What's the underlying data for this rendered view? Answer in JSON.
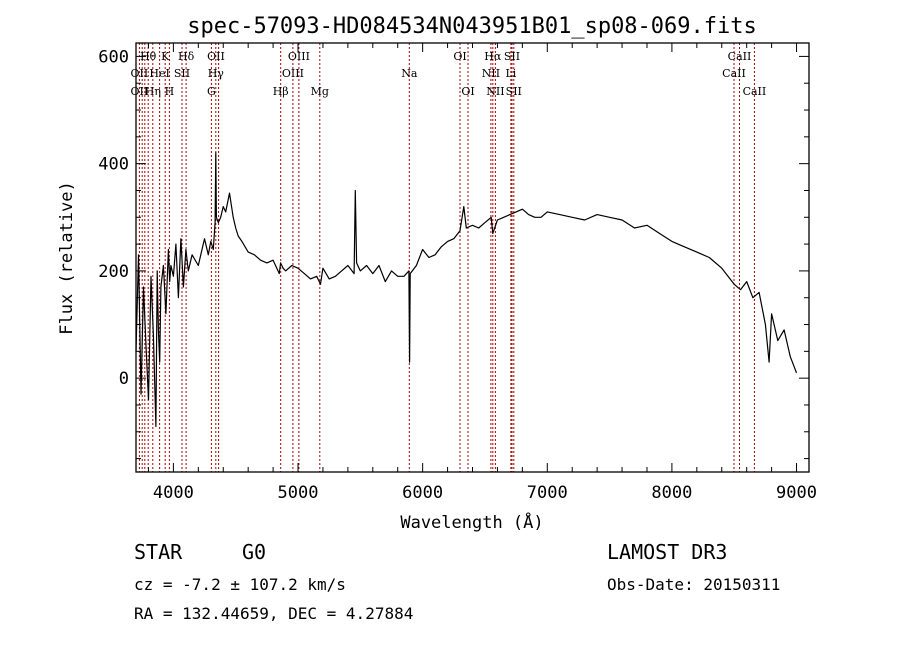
{
  "chart_data": {
    "type": "line",
    "title": "spec-57093-HD084534N043951B01_sp08-069.fits",
    "xlabel": "Wavelength (Å)",
    "ylabel": "Flux (relative)",
    "xlim": [
      3700,
      9100
    ],
    "ylim": [
      -175,
      625
    ],
    "xticks": [
      4000,
      5000,
      6000,
      7000,
      8000,
      9000
    ],
    "yticks": [
      0,
      200,
      400,
      600
    ],
    "colors": {
      "line": "#000000",
      "marker": "#aa0000",
      "axis": "#000000"
    },
    "series": [
      {
        "name": "spectrum",
        "x": [
          3700,
          3720,
          3740,
          3760,
          3780,
          3800,
          3820,
          3840,
          3860,
          3870,
          3880,
          3890,
          3900,
          3920,
          3940,
          3960,
          3970,
          3980,
          4000,
          4020,
          4040,
          4060,
          4080,
          4100,
          4120,
          4150,
          4200,
          4250,
          4280,
          4300,
          4320,
          4335,
          4340,
          4345,
          4360,
          4380,
          4400,
          4420,
          4450,
          4480,
          4500,
          4520,
          4550,
          4600,
          4650,
          4700,
          4750,
          4800,
          4850,
          4860,
          4880,
          4900,
          4950,
          5000,
          5050,
          5100,
          5150,
          5180,
          5200,
          5250,
          5300,
          5350,
          5400,
          5450,
          5460,
          5470,
          5500,
          5550,
          5600,
          5650,
          5700,
          5750,
          5800,
          5850,
          5890,
          5895,
          5900,
          5950,
          6000,
          6050,
          6100,
          6150,
          6200,
          6250,
          6300,
          6330,
          6350,
          6400,
          6450,
          6500,
          6550,
          6563,
          6600,
          6650,
          6700,
          6750,
          6800,
          6850,
          6900,
          6950,
          7000,
          7100,
          7200,
          7300,
          7400,
          7500,
          7600,
          7700,
          7800,
          7900,
          8000,
          8100,
          8200,
          8300,
          8400,
          8450,
          8500,
          8550,
          8600,
          8650,
          8700,
          8750,
          8780,
          8800,
          8850,
          8900,
          8950,
          9000
        ],
        "y": [
          50,
          230,
          -30,
          170,
          60,
          -40,
          190,
          80,
          -90,
          200,
          90,
          30,
          170,
          210,
          120,
          240,
          180,
          210,
          190,
          250,
          150,
          260,
          170,
          240,
          200,
          230,
          210,
          260,
          230,
          255,
          240,
          290,
          420,
          300,
          290,
          300,
          320,
          310,
          345,
          300,
          280,
          265,
          255,
          235,
          230,
          220,
          215,
          220,
          195,
          215,
          205,
          200,
          210,
          205,
          195,
          185,
          190,
          175,
          205,
          185,
          190,
          200,
          210,
          195,
          350,
          215,
          200,
          210,
          195,
          210,
          180,
          200,
          190,
          190,
          200,
          30,
          195,
          210,
          240,
          225,
          230,
          245,
          255,
          260,
          275,
          320,
          280,
          285,
          280,
          290,
          300,
          270,
          295,
          300,
          305,
          310,
          315,
          305,
          300,
          300,
          310,
          305,
          300,
          295,
          305,
          300,
          295,
          280,
          285,
          270,
          255,
          245,
          235,
          225,
          205,
          190,
          175,
          165,
          180,
          150,
          160,
          100,
          30,
          120,
          70,
          90,
          40,
          10
        ]
      }
    ],
    "line_labels": [
      {
        "text": "Hθ",
        "wl": 3798,
        "row": 1
      },
      {
        "text": "OII",
        "wl": 3727,
        "row": 2
      },
      {
        "text": "OII",
        "wl": 3727,
        "row": 3
      },
      {
        "text": "Hη",
        "wl": 3836,
        "row": 3
      },
      {
        "text": "HeI",
        "wl": 3889,
        "row": 2
      },
      {
        "text": "K",
        "wl": 3934,
        "row": 1
      },
      {
        "text": "SII",
        "wl": 4069,
        "row": 2
      },
      {
        "text": "H",
        "wl": 3968,
        "row": 3
      },
      {
        "text": "Hδ",
        "wl": 4102,
        "row": 1
      },
      {
        "text": "OII",
        "wl": 4342,
        "row": 1
      },
      {
        "text": "Hγ",
        "wl": 4340,
        "row": 2
      },
      {
        "text": "G",
        "wl": 4305,
        "row": 3
      },
      {
        "text": "OIII",
        "wl": 5007,
        "row": 1
      },
      {
        "text": "OIII",
        "wl": 4959,
        "row": 2
      },
      {
        "text": "Hβ",
        "wl": 4861,
        "row": 3
      },
      {
        "text": "Mg",
        "wl": 5175,
        "row": 3
      },
      {
        "text": "Na",
        "wl": 5893,
        "row": 2
      },
      {
        "text": "OI",
        "wl": 6300,
        "row": 1
      },
      {
        "text": "OI",
        "wl": 6364,
        "row": 3
      },
      {
        "text": "Hα",
        "wl": 6563,
        "row": 1
      },
      {
        "text": "SII",
        "wl": 6717,
        "row": 1
      },
      {
        "text": "NII",
        "wl": 6548,
        "row": 2
      },
      {
        "text": "Li",
        "wl": 6708,
        "row": 2
      },
      {
        "text": "NII",
        "wl": 6584,
        "row": 3
      },
      {
        "text": "SII",
        "wl": 6731,
        "row": 3
      },
      {
        "text": "CaII",
        "wl": 8542,
        "row": 1
      },
      {
        "text": "CaII",
        "wl": 8498,
        "row": 2
      },
      {
        "text": "CaII",
        "wl": 8662,
        "row": 3
      }
    ],
    "marker_lines": [
      3727,
      3750,
      3771,
      3798,
      3835,
      3889,
      3934,
      3968,
      4069,
      4102,
      4305,
      4340,
      4363,
      4861,
      4959,
      5007,
      5175,
      5893,
      6300,
      6364,
      6548,
      6563,
      6584,
      6708,
      6717,
      6731,
      8498,
      8542,
      8662
    ]
  },
  "info": {
    "object_class": "STAR",
    "subclass": "G0",
    "survey": "LAMOST DR3",
    "redshift": "cz = -7.2 ± 107.2 km/s",
    "obs_date": "Obs-Date: 20150311",
    "coordinates": "RA = 132.44659, DEC =   4.27884"
  }
}
